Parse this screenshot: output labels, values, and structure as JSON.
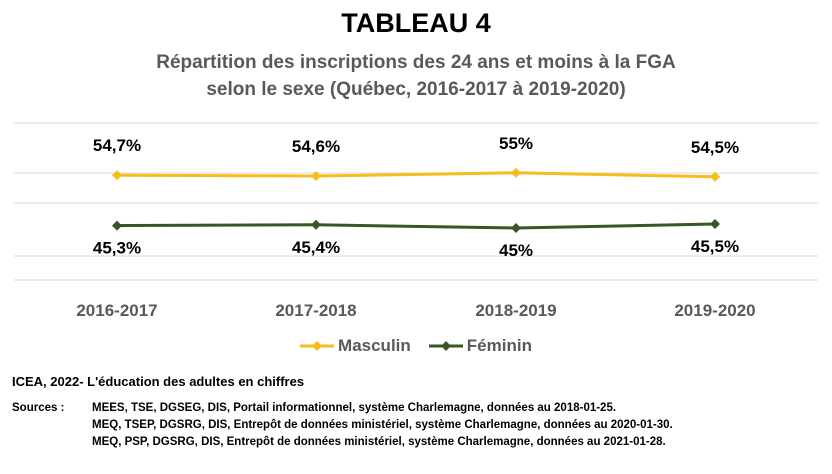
{
  "title": "TABLEAU 4",
  "subtitle_lines": [
    "Répartition des inscriptions des 24 ans et moins à la FGA",
    "selon le sexe (Québec, 2016-2017 à 2019-2020)"
  ],
  "chart_data": {
    "type": "line",
    "categories": [
      "2016-2017",
      "2017-2018",
      "2018-2019",
      "2019-2020"
    ],
    "series": [
      {
        "name": "Masculin",
        "color": "#F5BE1D",
        "marker": "diamond",
        "values": [
          54.7,
          54.6,
          55,
          54.5
        ],
        "labels": [
          "54,7%",
          "54,6%",
          "55%",
          "54,5%"
        ]
      },
      {
        "name": "Féminin",
        "color": "#375623",
        "marker": "diamond",
        "values": [
          45.3,
          45.4,
          45,
          45.5
        ],
        "labels": [
          "45,3%",
          "45,4%",
          "45%",
          "45,5%"
        ]
      }
    ],
    "grid": true,
    "legend": "bottom-center"
  },
  "legend": {
    "masculin": "Masculin",
    "feminin": "Féminin"
  },
  "source_title": "ICEA, 2022- L'éducation des adultes en chiffres",
  "sources_label": "Sources :",
  "sources_lines": [
    "MEES, TSE, DGSEG, DIS, Portail informationnel, système Charlemagne, données au 2018-01-25.",
    "MEQ, TSEP, DGSRG, DIS, Entrepôt de données ministériel, système Charlemagne, données au 2020-01-30.",
    "MEQ, PSP, DGSRG, DIS, Entrepôt de données ministériel, système Charlemagne, données au 2021-01-28."
  ]
}
